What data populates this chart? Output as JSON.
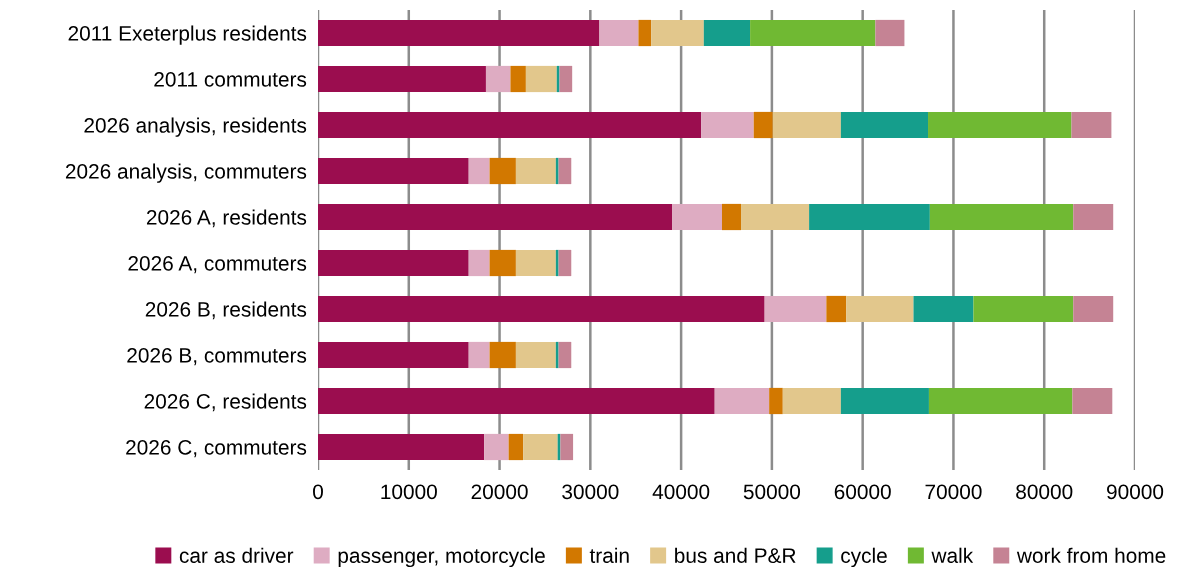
{
  "chart_data": {
    "type": "bar",
    "orientation": "horizontal",
    "stacked": true,
    "categories": [
      "2011 Exeterplus residents",
      "2011 commuters",
      "2026 analysis, residents",
      "2026 analysis, commuters",
      "2026 A, residents",
      "2026 A, commuters",
      "2026 B, residents",
      "2026 B, commuters",
      "2026 C, residents",
      "2026 C, commuters"
    ],
    "series": [
      {
        "name": "car as driver",
        "color": "#9b0d4f",
        "values": [
          31000,
          18500,
          42200,
          16600,
          39000,
          16600,
          49200,
          16600,
          43700,
          18300
        ]
      },
      {
        "name": "passenger, motorcycle",
        "color": "#deacc2",
        "values": [
          4300,
          2700,
          5800,
          2300,
          5500,
          2300,
          6800,
          2300,
          6000,
          2700
        ]
      },
      {
        "name": "train",
        "color": "#d27800",
        "values": [
          1400,
          1700,
          2100,
          2900,
          2100,
          2900,
          2200,
          2900,
          1500,
          1600
        ]
      },
      {
        "name": "bus and P&R",
        "color": "#e2c78c",
        "values": [
          5800,
          3400,
          7500,
          4400,
          7500,
          4400,
          7400,
          4400,
          6400,
          3800
        ]
      },
      {
        "name": "cycle",
        "color": "#159e8c",
        "values": [
          5100,
          300,
          9600,
          300,
          13300,
          300,
          6600,
          300,
          9700,
          300
        ]
      },
      {
        "name": "walk",
        "color": "#70b933",
        "values": [
          13800,
          0,
          15800,
          0,
          15800,
          0,
          11000,
          0,
          15800,
          0
        ]
      },
      {
        "name": "work from home",
        "color": "#c58394",
        "values": [
          3200,
          1400,
          4400,
          1400,
          4400,
          1400,
          4400,
          1400,
          4400,
          1400
        ]
      }
    ],
    "xlim": [
      0,
      90000
    ],
    "xticks": [
      0,
      10000,
      20000,
      30000,
      40000,
      50000,
      60000,
      70000,
      80000,
      90000
    ],
    "grid": "x",
    "legend": "bottom"
  }
}
